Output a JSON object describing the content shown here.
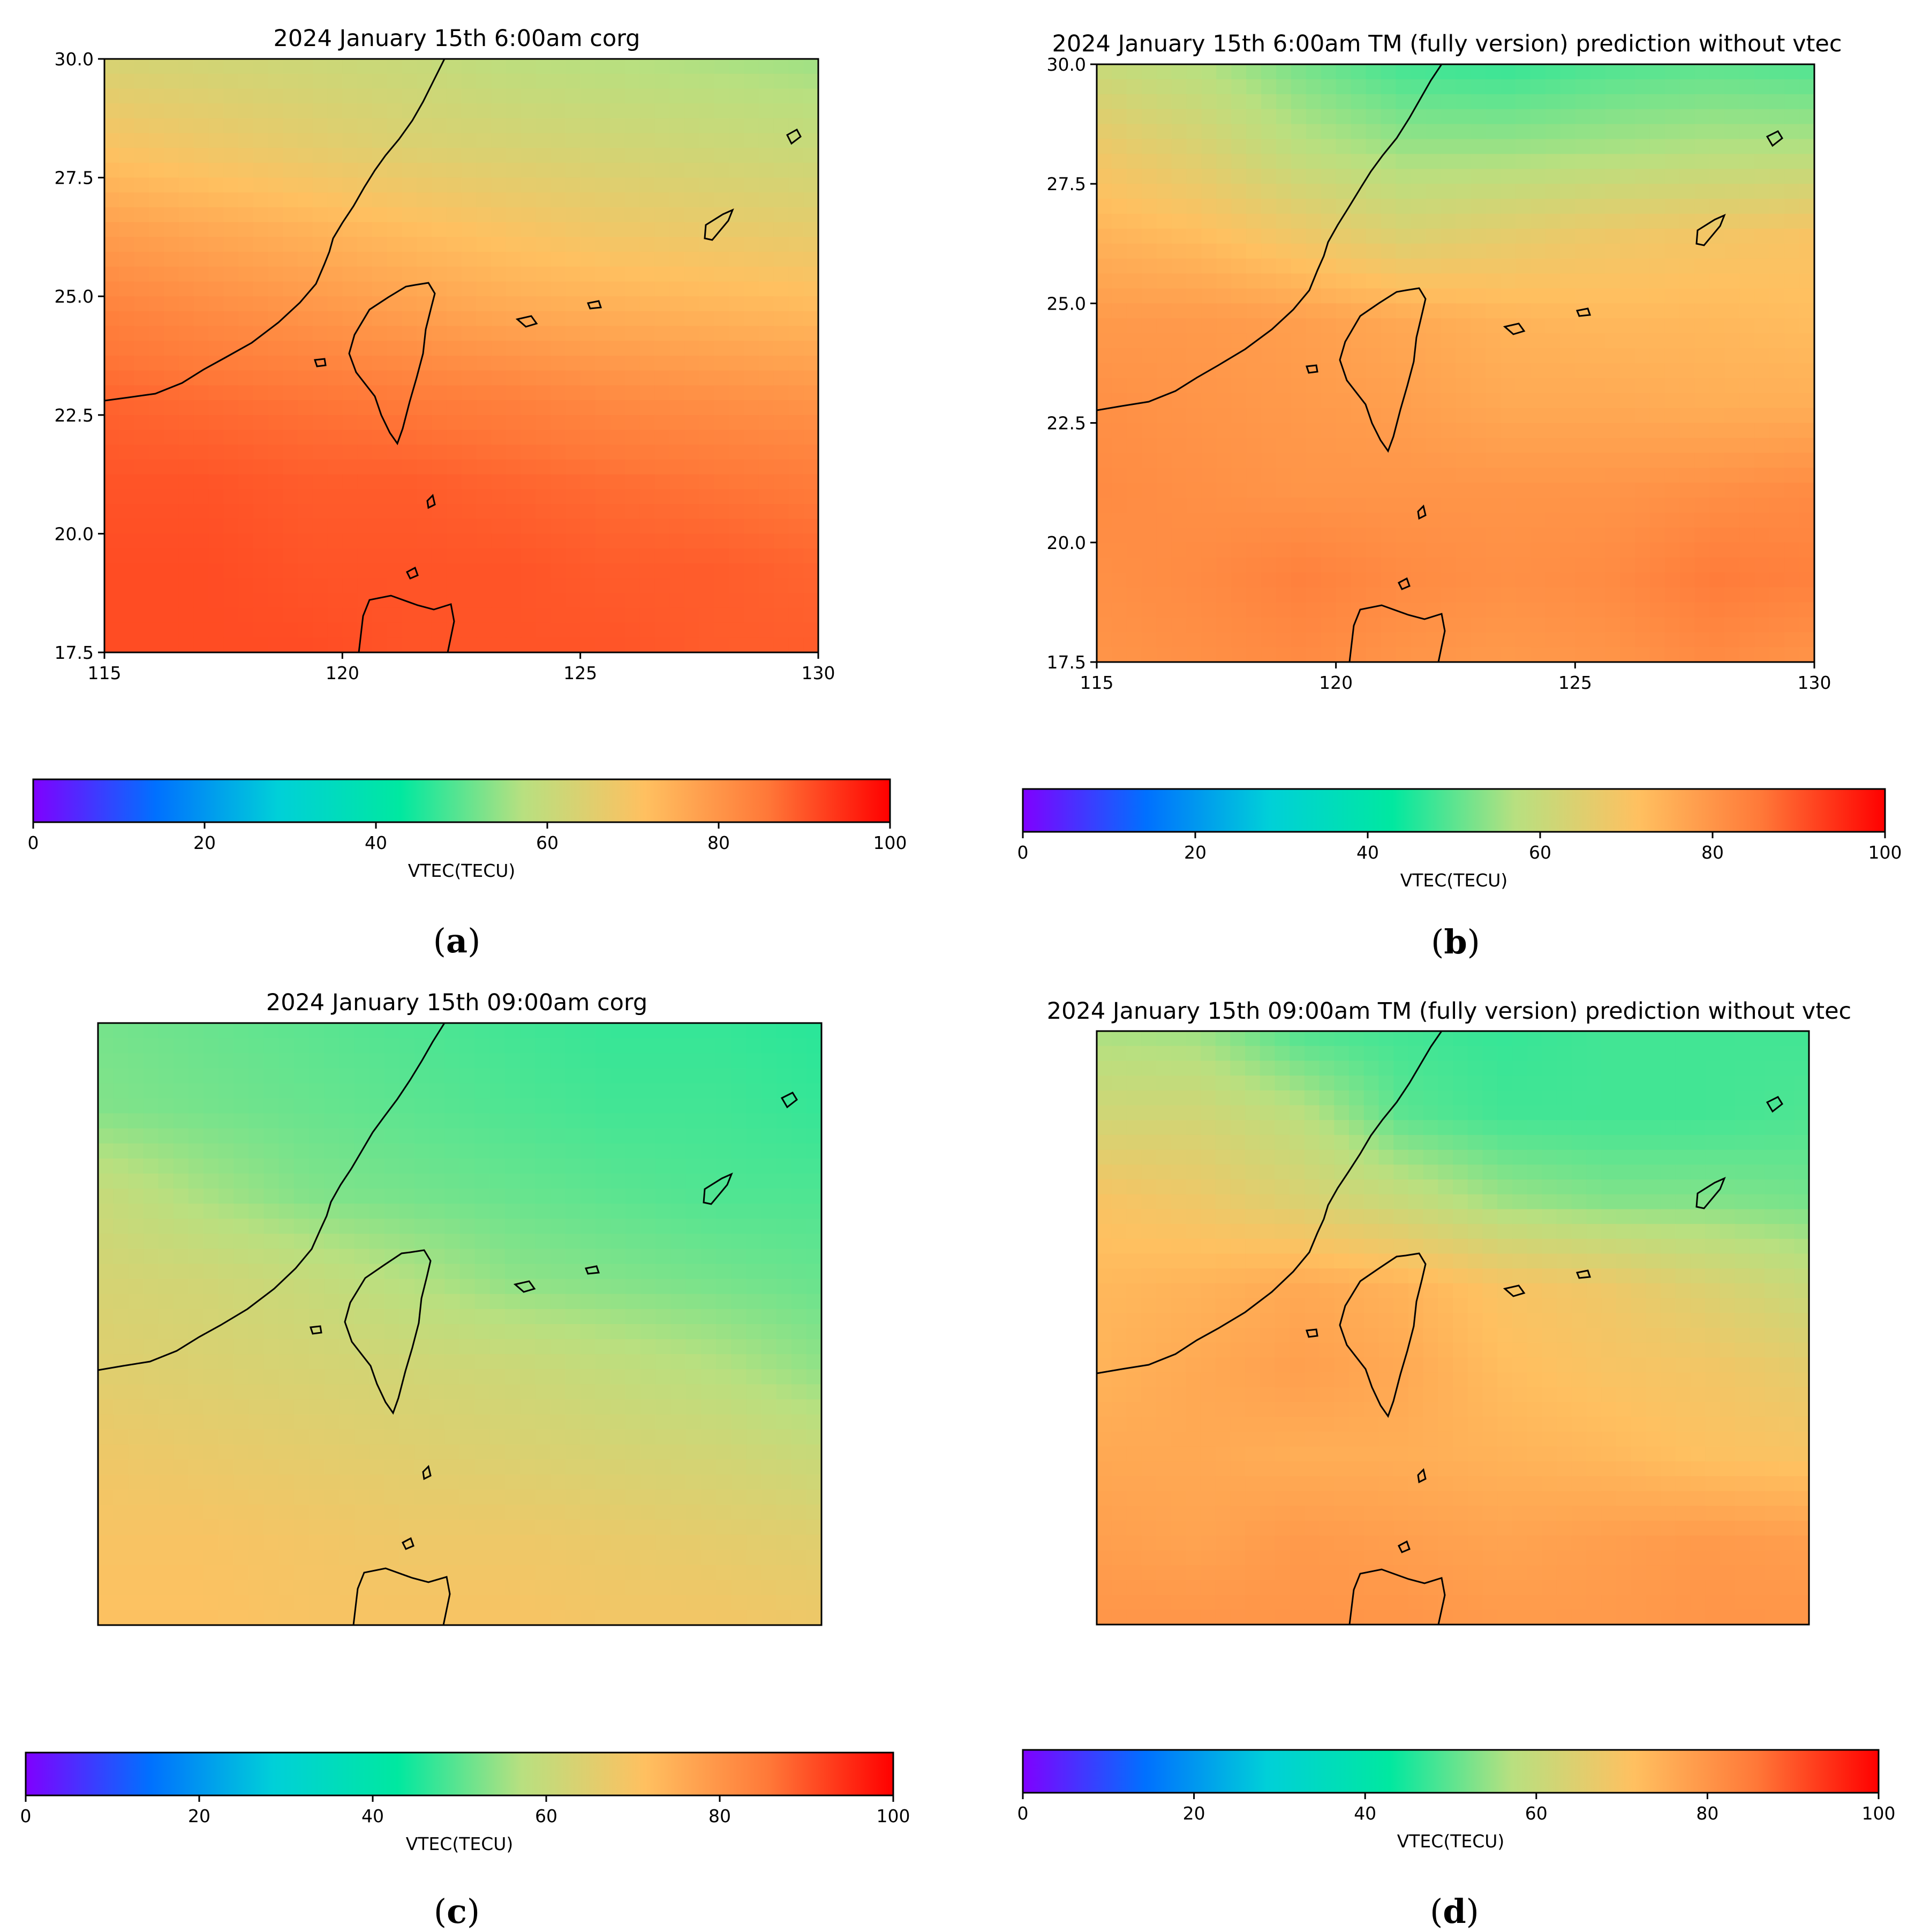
{
  "figure": {
    "colorbar_label": "VTEC(TECU)",
    "colorbar_ticks": [
      "0",
      "20",
      "40",
      "60",
      "80",
      "100"
    ],
    "colorbar_range": [
      0,
      100
    ],
    "colormap": [
      "#8000ff",
      "#0070ff",
      "#00d0d8",
      "#00e8a0",
      "#b8e080",
      "#ffc060",
      "#ff7838",
      "#ff0000"
    ]
  },
  "chart_data": [
    {
      "type": "heatmap",
      "panel_label": "a",
      "title": "2024 January 15th 6:00am corg",
      "xticks": [
        "115",
        "120",
        "125",
        "130"
      ],
      "yticks": [
        "17.5",
        "20.0",
        "22.5",
        "25.0",
        "27.5",
        "30.0"
      ],
      "xlim": [
        115,
        130
      ],
      "ylim": [
        17.5,
        30.0
      ],
      "show_axis_ticks": true,
      "vtec_grid": [
        [
          63,
          62,
          61,
          60,
          58,
          57,
          56,
          55
        ],
        [
          70,
          68,
          66,
          64,
          63,
          62,
          61,
          60
        ],
        [
          78,
          76,
          74,
          72,
          70,
          68,
          67,
          66
        ],
        [
          84,
          82,
          80,
          78,
          76,
          75,
          74,
          73
        ],
        [
          88,
          87,
          86,
          85,
          84,
          82,
          81,
          80
        ],
        [
          90,
          90,
          89,
          89,
          88,
          87,
          86,
          85
        ],
        [
          91,
          91,
          90,
          90,
          90,
          89,
          89,
          88
        ],
        [
          91,
          91,
          91,
          90,
          90,
          90,
          89,
          89
        ]
      ]
    },
    {
      "type": "heatmap",
      "panel_label": "b",
      "title": "2024 January 15th 6:00am TM (fully version) prediction without vtec",
      "xticks": [
        "115",
        "120",
        "125",
        "130"
      ],
      "yticks": [
        "17.5",
        "20.0",
        "22.5",
        "25.0",
        "27.5",
        "30.0"
      ],
      "xlim": [
        115,
        130
      ],
      "ylim": [
        17.5,
        30.0
      ],
      "show_axis_ticks": true,
      "vtec_grid": [
        [
          60,
          57,
          52,
          48,
          47,
          49,
          50,
          49
        ],
        [
          68,
          64,
          58,
          55,
          55,
          56,
          57,
          57
        ],
        [
          74,
          72,
          68,
          64,
          66,
          68,
          69,
          70
        ],
        [
          79,
          79,
          78,
          76,
          74,
          73,
          73,
          72
        ],
        [
          81,
          80,
          79,
          78,
          76,
          76,
          75,
          75
        ],
        [
          82,
          81,
          80,
          80,
          80,
          80,
          81,
          82
        ],
        [
          81,
          82,
          84,
          82,
          81,
          82,
          85,
          84
        ],
        [
          80,
          81,
          82,
          80,
          79,
          80,
          82,
          80
        ]
      ]
    },
    {
      "type": "heatmap",
      "panel_label": "c",
      "title": "2024 January 15th 09:00am corg",
      "xticks": [],
      "yticks": [],
      "show_axis_ticks": false,
      "vtec_grid": [
        [
          52,
          51,
          50,
          49,
          48,
          47,
          47,
          46
        ],
        [
          53,
          52,
          51,
          50,
          49,
          48,
          48,
          47
        ],
        [
          60,
          56,
          53,
          52,
          51,
          50,
          49,
          49
        ],
        [
          63,
          62,
          60,
          57,
          54,
          53,
          52,
          51
        ],
        [
          65,
          64,
          63,
          62,
          61,
          59,
          57,
          54
        ],
        [
          68,
          67,
          66,
          65,
          64,
          63,
          62,
          60
        ],
        [
          70,
          70,
          69,
          68,
          68,
          67,
          66,
          65
        ],
        [
          71,
          71,
          70,
          70,
          70,
          69,
          69,
          68
        ]
      ]
    },
    {
      "type": "heatmap",
      "panel_label": "d",
      "title": "2024 January 15th 09:00am TM (fully version) prediction without vtec",
      "xticks": [],
      "yticks": [],
      "show_axis_ticks": false,
      "vtec_grid": [
        [
          56,
          55,
          49,
          48,
          47,
          48,
          48,
          48
        ],
        [
          62,
          62,
          58,
          50,
          48,
          48,
          48,
          49
        ],
        [
          70,
          68,
          64,
          60,
          55,
          53,
          53,
          52
        ],
        [
          73,
          74,
          76,
          74,
          70,
          68,
          64,
          60
        ],
        [
          74,
          76,
          78,
          76,
          72,
          70,
          69,
          66
        ],
        [
          76,
          76,
          75,
          75,
          74,
          73,
          71,
          70
        ],
        [
          78,
          77,
          79,
          78,
          77,
          78,
          79,
          78
        ],
        [
          80,
          80,
          80,
          80,
          79,
          79,
          80,
          80
        ]
      ]
    }
  ]
}
